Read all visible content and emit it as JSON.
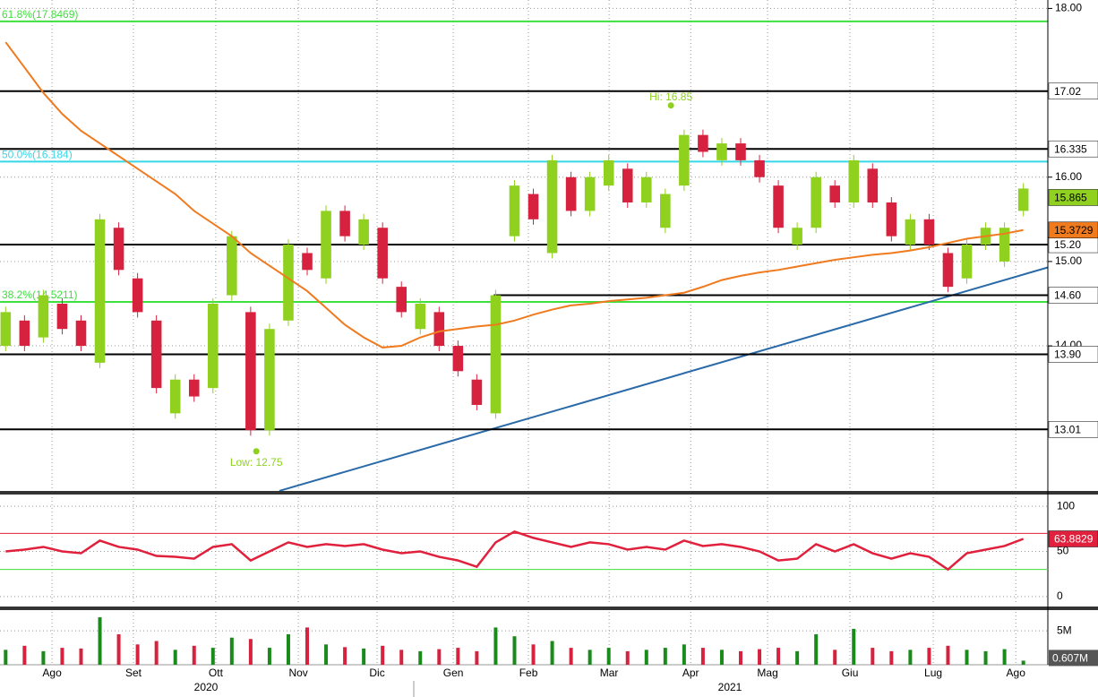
{
  "chart_data": {
    "type": "candlestick",
    "xlim": [
      -0.3,
      55.3
    ],
    "xticks": [
      {
        "value": 2.46,
        "label": "Ago"
      },
      {
        "value": 6.78,
        "label": "Set"
      },
      {
        "value": 11.15,
        "label": "Ott"
      },
      {
        "value": 15.53,
        "label": "Nov"
      },
      {
        "value": 19.71,
        "label": "Dic"
      },
      {
        "value": 23.75,
        "label": "Gen"
      },
      {
        "value": 27.74,
        "label": "Feb"
      },
      {
        "value": 32.02,
        "label": "Mar"
      },
      {
        "value": 36.35,
        "label": "Apr"
      },
      {
        "value": 40.43,
        "label": "Mag"
      },
      {
        "value": 44.8,
        "label": "Giu"
      },
      {
        "value": 49.22,
        "label": "Lug"
      },
      {
        "value": 53.6,
        "label": "Ago"
      }
    ],
    "years": [
      "2020",
      "2021"
    ],
    "ylim": [
      12.28,
      18.1
    ],
    "yticks": [
      {
        "value": 18,
        "label": "18.00"
      },
      {
        "value": 16,
        "label": "16.00"
      },
      {
        "value": 15,
        "label": "15.00"
      },
      {
        "value": 14,
        "label": "14.00"
      }
    ],
    "up_color": "#8fd11e",
    "down_color": "#d6223e",
    "open": [
      14.0,
      14.3,
      14.1,
      14.5,
      14.3,
      13.8,
      15.4,
      14.8,
      14.3,
      13.2,
      13.6,
      13.5,
      14.6,
      14.4,
      13.0,
      14.3,
      15.1,
      14.8,
      15.6,
      15.2,
      15.4,
      14.7,
      14.2,
      14.4,
      14.0,
      13.6,
      13.2,
      15.3,
      15.8,
      15.1,
      16.0,
      15.6,
      15.9,
      16.1,
      15.7,
      15.4,
      15.9,
      16.5,
      16.2,
      16.4,
      16.2,
      15.9,
      15.2,
      15.4,
      15.9,
      15.7,
      16.1,
      15.7,
      15.2,
      15.5,
      15.1,
      14.8,
      15.2,
      15.0,
      15.6
    ],
    "close": [
      14.4,
      14.0,
      14.6,
      14.2,
      14.0,
      15.5,
      14.9,
      14.4,
      13.5,
      13.6,
      13.4,
      14.5,
      15.3,
      13.0,
      14.2,
      15.2,
      14.9,
      15.6,
      15.3,
      15.5,
      14.8,
      14.4,
      14.5,
      14.0,
      13.7,
      13.3,
      14.6,
      15.9,
      15.5,
      16.2,
      15.6,
      16.0,
      16.2,
      15.7,
      16.0,
      15.8,
      16.5,
      16.3,
      16.4,
      16.2,
      16.0,
      15.4,
      15.4,
      16.0,
      15.7,
      16.2,
      15.7,
      15.3,
      15.5,
      15.2,
      14.7,
      15.2,
      15.4,
      15.4,
      15.865
    ],
    "close_color": "#8fd11e",
    "ma": {
      "color": "#f07a1e",
      "values": [
        17.6,
        17.3,
        17.0,
        16.75,
        16.55,
        16.4,
        16.25,
        16.1,
        15.95,
        15.8,
        15.6,
        15.45,
        15.3,
        15.1,
        14.95,
        14.8,
        14.65,
        14.45,
        14.25,
        14.1,
        13.98,
        14.0,
        14.1,
        14.17,
        14.2,
        14.23,
        14.25,
        14.3,
        14.37,
        14.43,
        14.48,
        14.5,
        14.53,
        14.55,
        14.57,
        14.6,
        14.63,
        14.7,
        14.78,
        14.83,
        14.87,
        14.9,
        14.94,
        14.98,
        15.02,
        15.05,
        15.08,
        15.1,
        15.13,
        15.17,
        15.22,
        15.27,
        15.3,
        15.33,
        15.3729
      ]
    },
    "levels": [
      17.02,
      16.335,
      {
        "value": 15.2,
        "label": "15.20"
      },
      {
        "value": 14.6,
        "label": "14.60",
        "start": 25.9
      },
      {
        "value": 13.9,
        "label": "13.90"
      },
      13.01
    ],
    "fibs": [
      {
        "value": 17.8469,
        "label": "61.8%(17.8469)",
        "color": "#3ee03e"
      },
      {
        "value": 16.184,
        "label": "50.0%(16.184)",
        "color": "#35d8e8"
      },
      {
        "value": 14.5211,
        "label": "38.2%(14.5211)",
        "color": "#3ee03e"
      }
    ],
    "annotations": [
      {
        "text": "Hi: 16.85",
        "x": 35.3,
        "value": 16.85
      },
      {
        "text": "Low: 12.75",
        "x": 13.3,
        "value": 12.75
      }
    ],
    "trendline": {
      "color": "#2a6aa8",
      "x": [
        25.75,
        55.3
      ],
      "values": [
        13.01,
        14.93
      ]
    },
    "rsi": {
      "color": "#e0203c",
      "ylim": [
        -9,
        110
      ],
      "yticks": [
        0,
        50,
        100
      ],
      "upper": 70,
      "lower": 30,
      "values": [
        50,
        52,
        55,
        50,
        48,
        62,
        55,
        52,
        45,
        44,
        42,
        55,
        58,
        40,
        50,
        60,
        55,
        58,
        56,
        58,
        52,
        48,
        50,
        44,
        40,
        33,
        60,
        72,
        65,
        60,
        55,
        60,
        58,
        52,
        55,
        52,
        62,
        56,
        58,
        55,
        50,
        40,
        42,
        58,
        50,
        58,
        48,
        42,
        48,
        44,
        30,
        48,
        52,
        56,
        63.8829
      ]
    },
    "volume": {
      "ylim": [
        0,
        7.8
      ],
      "yticks": [
        {
          "value": 5,
          "label": "5M"
        }
      ],
      "last": {
        "value": 0.607,
        "label": "0.607M"
      },
      "values": [
        2.2,
        2.8,
        2.0,
        2.5,
        2.4,
        7.0,
        4.5,
        3.0,
        3.5,
        2.2,
        2.8,
        2.5,
        4.0,
        3.8,
        2.5,
        4.5,
        5.5,
        3.0,
        2.6,
        2.4,
        2.8,
        2.2,
        2.0,
        2.3,
        2.5,
        2.0,
        5.5,
        4.2,
        3.0,
        3.5,
        2.5,
        2.2,
        2.5,
        2.0,
        2.2,
        2.5,
        3.0,
        2.5,
        2.2,
        2.0,
        2.3,
        2.5,
        2.0,
        4.5,
        2.2,
        5.3,
        2.5,
        2.0,
        2.2,
        2.5,
        2.8,
        2.2,
        2.0,
        2.3,
        0.607
      ]
    }
  }
}
